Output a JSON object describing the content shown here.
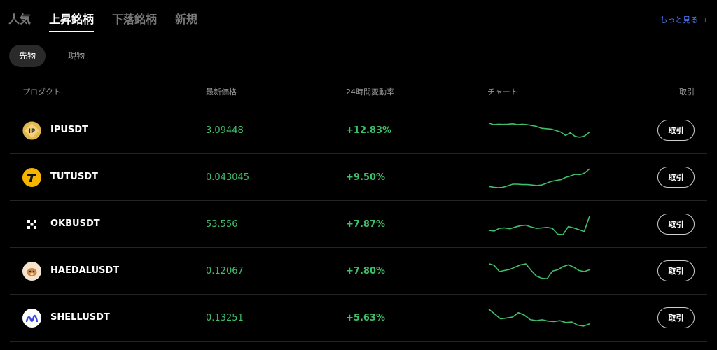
{
  "top_tabs": [
    {
      "label": "人気",
      "active": false
    },
    {
      "label": "上昇銘柄",
      "active": true
    },
    {
      "label": "下落銘柄",
      "active": false
    },
    {
      "label": "新規",
      "active": false
    }
  ],
  "more_link": "もっと見る →",
  "sub_tabs": [
    {
      "label": "先物",
      "active": true
    },
    {
      "label": "現物",
      "active": false
    }
  ],
  "columns": {
    "product": "プロダクト",
    "price": "最新価格",
    "change": "24時間変動率",
    "chart": "チャート",
    "trade": "取引"
  },
  "colors": {
    "positive": "#3fbf6a",
    "accent_link": "#4f7cff"
  },
  "rows": [
    {
      "symbol": "IPUSDT",
      "price": "3.09448",
      "change": "+12.83%",
      "trade_label": "取引",
      "icon": "ip-token-icon",
      "spark": [
        0.85,
        0.78,
        0.8,
        0.79,
        0.8,
        0.82,
        0.78,
        0.8,
        0.78,
        0.74,
        0.7,
        0.62,
        0.6,
        0.58,
        0.52,
        0.45,
        0.3,
        0.42,
        0.26,
        0.22,
        0.28,
        0.45
      ]
    },
    {
      "symbol": "TUTUSDT",
      "price": "0.043045",
      "change": "+9.50%",
      "trade_label": "取引",
      "icon": "tut-token-icon",
      "spark": [
        0.12,
        0.08,
        0.06,
        0.08,
        0.15,
        0.22,
        0.22,
        0.2,
        0.2,
        0.18,
        0.16,
        0.18,
        0.26,
        0.34,
        0.38,
        0.42,
        0.52,
        0.58,
        0.66,
        0.64,
        0.72,
        0.9
      ]
    },
    {
      "symbol": "OKBUSDT",
      "price": "53.556",
      "change": "+7.87%",
      "trade_label": "取引",
      "icon": "okb-token-icon",
      "spark": [
        0.25,
        0.22,
        0.34,
        0.36,
        0.32,
        0.4,
        0.46,
        0.48,
        0.4,
        0.34,
        0.36,
        0.38,
        0.34,
        0.08,
        0.06,
        0.42,
        0.36,
        0.28,
        0.2,
        0.88
      ]
    },
    {
      "symbol": "HAEDALUSDT",
      "price": "0.12067",
      "change": "+7.80%",
      "trade_label": "取引",
      "icon": "haedal-token-icon",
      "spark": [
        0.85,
        0.78,
        0.5,
        0.55,
        0.6,
        0.7,
        0.8,
        0.84,
        0.55,
        0.3,
        0.2,
        0.18,
        0.52,
        0.58,
        0.72,
        0.8,
        0.7,
        0.55,
        0.5,
        0.58
      ]
    },
    {
      "symbol": "SHELLUSDT",
      "price": "0.13251",
      "change": "+5.63%",
      "trade_label": "取引",
      "icon": "shell-token-icon",
      "spark": [
        0.92,
        0.7,
        0.48,
        0.52,
        0.56,
        0.76,
        0.65,
        0.45,
        0.4,
        0.44,
        0.38,
        0.36,
        0.4,
        0.32,
        0.34,
        0.2,
        0.16,
        0.26
      ]
    }
  ]
}
